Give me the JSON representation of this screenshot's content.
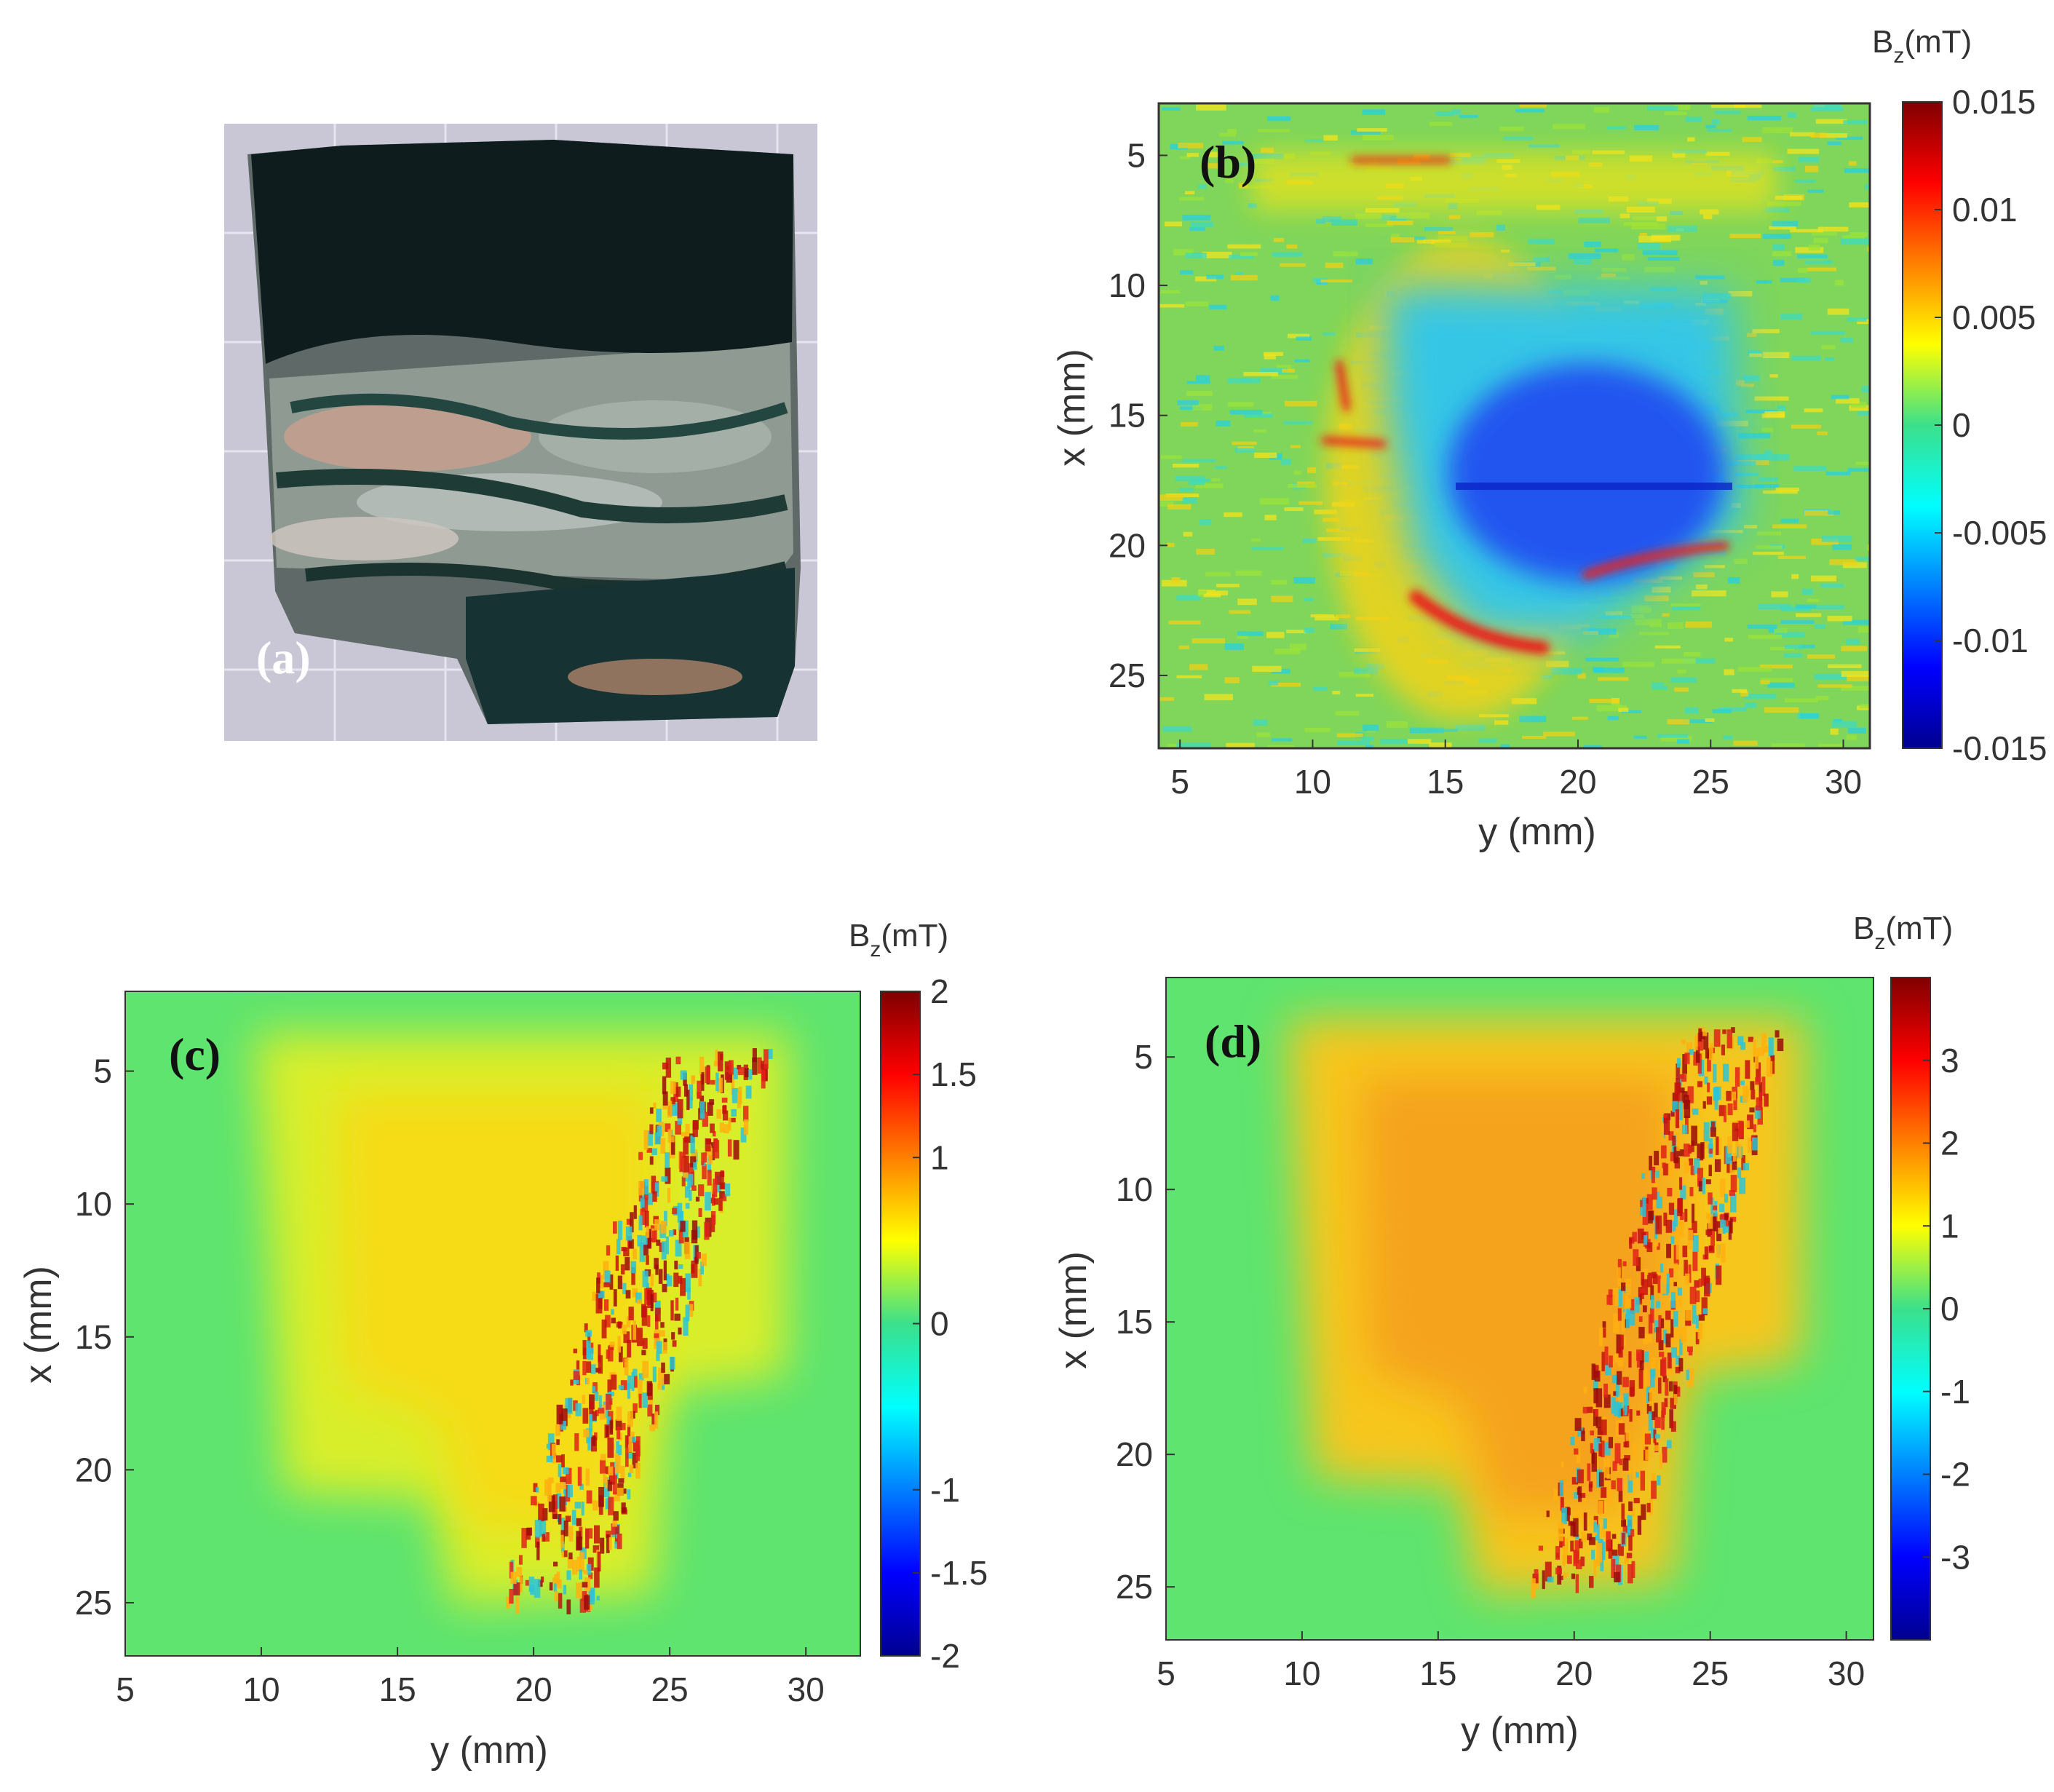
{
  "chart_data": [
    {
      "panel": "(a)",
      "type": "other",
      "description": ""
    },
    {
      "panel": "(b)",
      "type": "heatmap",
      "xlabel": "y (mm)",
      "ylabel": "x (mm)",
      "xticks": [
        "5",
        "10",
        "15",
        "20",
        "25",
        "30"
      ],
      "yticks": [
        "5",
        "10",
        "15",
        "20",
        "25"
      ],
      "xlim": [
        4.2,
        31.0
      ],
      "ylim": [
        3.0,
        27.8
      ],
      "colorbar": {
        "title": "B",
        "subscript": "z",
        "unit": "(mT)",
        "ticks": [
          "0.015",
          "0.01",
          "0.005",
          "0",
          "-0.005",
          "-0.01",
          "-0.015"
        ],
        "range": [
          -0.015,
          0.015
        ]
      },
      "background_value": 0.001,
      "features": [
        {
          "kind": "region",
          "shape": "negative basin",
          "value": -0.008,
          "y_range": [
            13.5,
            25.0
          ],
          "x_range": [
            10.0,
            24.0
          ]
        },
        {
          "kind": "region",
          "shape": "core",
          "value": -0.013,
          "y_range": [
            15.5,
            23.0
          ],
          "x_range": [
            15.5,
            19.5
          ]
        },
        {
          "kind": "rim",
          "shape": "positive rim",
          "value": 0.009,
          "y_range": [
            11.0,
            22.0
          ],
          "x_range": [
            9.0,
            24.0
          ]
        },
        {
          "kind": "band",
          "shape": "top band",
          "value": 0.005,
          "y_range": [
            6.0,
            28.0
          ],
          "x_range": [
            5.0,
            7.0
          ]
        }
      ]
    },
    {
      "panel": "(c)",
      "type": "heatmap",
      "xlabel": "y (mm)",
      "ylabel": "x (mm)",
      "xticks": [
        "5",
        "10",
        "15",
        "20",
        "25",
        "30"
      ],
      "yticks": [
        "5",
        "10",
        "15",
        "20",
        "25"
      ],
      "xlim": [
        5.0,
        32.0
      ],
      "ylim": [
        2.0,
        27.0
      ],
      "colorbar": {
        "title": "B",
        "subscript": "z",
        "unit": "(mT)",
        "ticks": [
          "2",
          "1.5",
          "1",
          "0",
          "-1",
          "-1.5",
          "-2"
        ],
        "range": [
          -2,
          2
        ]
      },
      "background_value": 0.2,
      "features": [
        {
          "kind": "region",
          "shape": "sample body",
          "value": 0.95,
          "y_range": [
            9.5,
            29.0
          ],
          "x_range": [
            3.5,
            25.5
          ]
        },
        {
          "kind": "region",
          "shape": "central plateau",
          "value": 1.15,
          "y_range": [
            11.0,
            23.0
          ],
          "x_range": [
            9.0,
            18.0
          ]
        },
        {
          "kind": "speckle",
          "shape": "noisy vein",
          "value": 1.8,
          "y_range": [
            19.0,
            28.0
          ],
          "x_range": [
            5.0,
            24.0
          ]
        }
      ]
    },
    {
      "panel": "(d)",
      "type": "heatmap",
      "xlabel": "y (mm)",
      "ylabel": "x (mm)",
      "xticks": [
        "5",
        "10",
        "15",
        "20",
        "25",
        "30"
      ],
      "yticks": [
        "5",
        "10",
        "15",
        "20",
        "25"
      ],
      "xlim": [
        5.0,
        31.0
      ],
      "ylim": [
        2.0,
        27.0
      ],
      "colorbar": {
        "title": "B",
        "subscript": "z",
        "unit": "(mT)",
        "ticks": [
          "3",
          "2",
          "1",
          "0",
          "-1",
          "-2",
          "-3"
        ],
        "range": [
          -4,
          4
        ]
      },
      "background_value": 0.3,
      "features": [
        {
          "kind": "region",
          "shape": "sample body",
          "value": 1.7,
          "y_range": [
            9.5,
            29.0
          ],
          "x_range": [
            3.0,
            25.0
          ]
        },
        {
          "kind": "region",
          "shape": "central plateau",
          "value": 2.1,
          "y_range": [
            11.0,
            23.0
          ],
          "x_range": [
            9.0,
            18.0
          ]
        },
        {
          "kind": "speckle",
          "shape": "noisy vein",
          "value": 3.0,
          "y_range": [
            19.0,
            28.0
          ],
          "x_range": [
            5.0,
            24.0
          ]
        }
      ]
    }
  ]
}
